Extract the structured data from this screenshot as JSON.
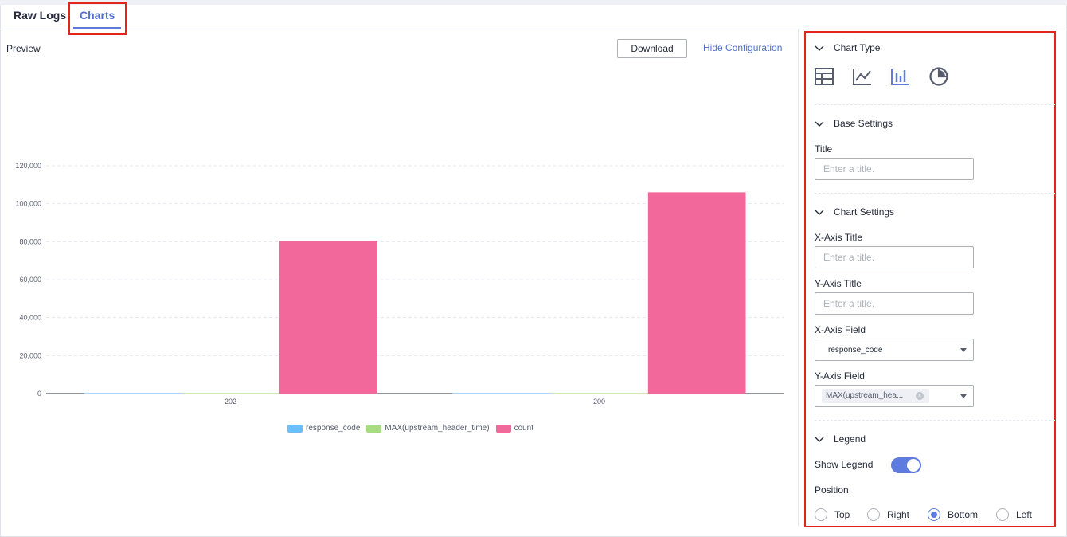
{
  "tabs": [
    {
      "label": "Raw Logs",
      "active": false
    },
    {
      "label": "Charts",
      "active": true
    }
  ],
  "preview": {
    "label": "Preview",
    "download_label": "Download",
    "hide_config_label": "Hide Configuration"
  },
  "chart_data": {
    "type": "bar",
    "categories": [
      "202",
      "200"
    ],
    "series": [
      {
        "name": "response_code",
        "color": "#6cbfff",
        "values": [
          202,
          200
        ]
      },
      {
        "name": "MAX(upstream_header_time)",
        "color": "#a6dd82",
        "values": [
          0,
          0
        ]
      },
      {
        "name": "count",
        "color": "#f3689a",
        "values": [
          80500,
          106000
        ]
      }
    ],
    "ylim": [
      0,
      120000
    ],
    "yticks": [
      "0",
      "20,000",
      "40,000",
      "60,000",
      "80,000",
      "100,000",
      "120,000"
    ],
    "ytick_values": [
      0,
      20000,
      40000,
      60000,
      80000,
      100000,
      120000
    ],
    "grid": true,
    "legend_position": "bottom"
  },
  "config": {
    "chart_type": {
      "heading": "Chart Type",
      "icons": [
        "table-icon",
        "line-chart-icon",
        "bar-chart-icon",
        "pie-chart-icon"
      ],
      "selected": "bar-chart-icon"
    },
    "base_settings": {
      "heading": "Base Settings",
      "title_label": "Title",
      "title_placeholder": "Enter a title."
    },
    "chart_settings": {
      "heading": "Chart Settings",
      "x_axis_title_label": "X-Axis Title",
      "x_axis_title_placeholder": "Enter a title.",
      "y_axis_title_label": "Y-Axis Title",
      "y_axis_title_placeholder": "Enter a title.",
      "x_axis_field_label": "X-Axis Field",
      "x_axis_field_value": "response_code",
      "y_axis_field_label": "Y-Axis Field",
      "y_axis_field_chip": "MAX(upstream_hea..."
    },
    "legend": {
      "heading": "Legend",
      "show_legend_label": "Show Legend",
      "show_legend": true,
      "position_label": "Position",
      "positions": [
        "Top",
        "Right",
        "Bottom",
        "Left"
      ],
      "selected_position": "Bottom"
    }
  },
  "colors": {
    "accent": "#5e7ce0",
    "highlight_box": "#e1251b"
  }
}
